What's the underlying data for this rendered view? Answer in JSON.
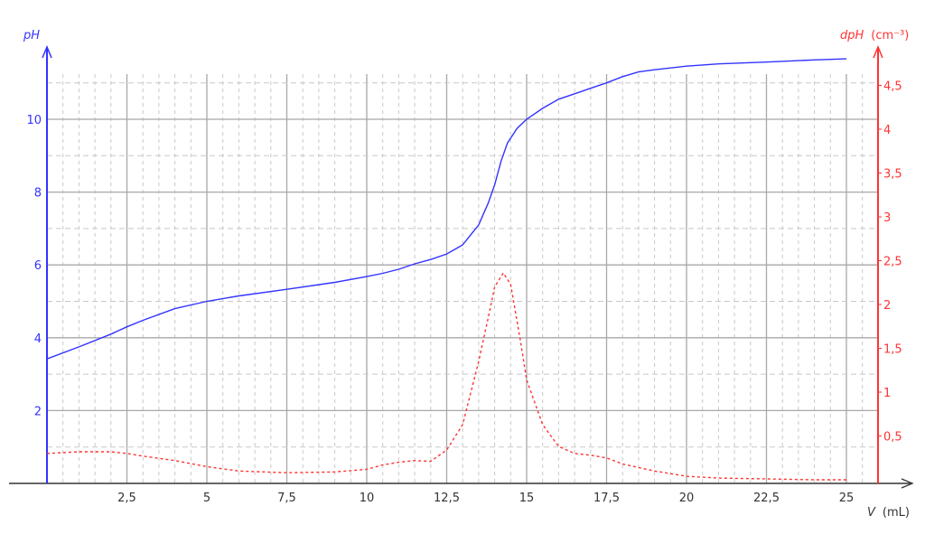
{
  "chart_data": {
    "type": "line",
    "xlabel": "V",
    "xunit": "(mL)",
    "ylabel_left": "pH",
    "ylabel_right": "dpH",
    "yunit_right": "(cm⁻³)",
    "xlim": [
      0,
      26
    ],
    "ylim_left": [
      0,
      12
    ],
    "ylim_right": [
      0,
      5.0
    ],
    "grid": true,
    "x_ticks": [
      2.5,
      5,
      7.5,
      10,
      12.5,
      15,
      17.5,
      20,
      22.5,
      25
    ],
    "x_tick_labels": [
      "2,5",
      "5",
      "7,5",
      "10",
      "12,5",
      "15",
      "17,5",
      "20",
      "22,5",
      "25"
    ],
    "y_left_ticks": [
      2,
      4,
      6,
      8,
      10
    ],
    "y_left_tick_labels": [
      "2",
      "4",
      "6",
      "8",
      "10"
    ],
    "y_right_ticks": [
      0.5,
      1,
      1.5,
      2,
      2.5,
      3,
      3.5,
      4,
      4.5
    ],
    "y_right_tick_labels": [
      "0,5",
      "1",
      "1,5",
      "2",
      "2,5",
      "3",
      "3,5",
      "4",
      "4,5"
    ],
    "colors": {
      "left": "#3333ff",
      "right": "#ff3333",
      "grid": "#b0b0b0"
    },
    "series": [
      {
        "axis": "left",
        "style": "solid",
        "x": [
          0,
          1,
          2,
          2.5,
          3,
          4,
          5,
          6,
          7.5,
          9,
          10,
          10.5,
          11,
          11.5,
          12,
          12.5,
          13,
          13.5,
          13.8,
          14,
          14.2,
          14.4,
          14.7,
          15,
          15.5,
          16,
          16.5,
          17,
          17.5,
          18,
          18.5,
          19,
          20,
          21,
          22.5,
          24,
          25
        ],
        "y": [
          3.42,
          3.75,
          4.1,
          4.3,
          4.48,
          4.8,
          5.0,
          5.15,
          5.33,
          5.52,
          5.68,
          5.77,
          5.88,
          6.03,
          6.15,
          6.3,
          6.55,
          7.1,
          7.7,
          8.2,
          8.85,
          9.35,
          9.75,
          10.0,
          10.3,
          10.55,
          10.7,
          10.85,
          11.0,
          11.17,
          11.3,
          11.36,
          11.46,
          11.52,
          11.57,
          11.63,
          11.66
        ]
      },
      {
        "axis": "right",
        "style": "dashed",
        "x": [
          0,
          1,
          2,
          2.5,
          3,
          4,
          5,
          6,
          7.5,
          9,
          10,
          10.5,
          11,
          11.5,
          12,
          12.5,
          13,
          13.5,
          13.8,
          14,
          14.27,
          14.5,
          14.8,
          15,
          15.5,
          16,
          16.5,
          17,
          17.5,
          18,
          19,
          20,
          21,
          22.5,
          24,
          25
        ],
        "y": [
          0.3,
          0.32,
          0.32,
          0.3,
          0.27,
          0.22,
          0.15,
          0.1,
          0.08,
          0.09,
          0.12,
          0.17,
          0.2,
          0.22,
          0.21,
          0.34,
          0.63,
          1.35,
          1.85,
          2.2,
          2.36,
          2.23,
          1.6,
          1.14,
          0.63,
          0.38,
          0.3,
          0.28,
          0.25,
          0.18,
          0.1,
          0.04,
          0.02,
          0.01,
          0.0,
          0.0
        ]
      }
    ]
  }
}
